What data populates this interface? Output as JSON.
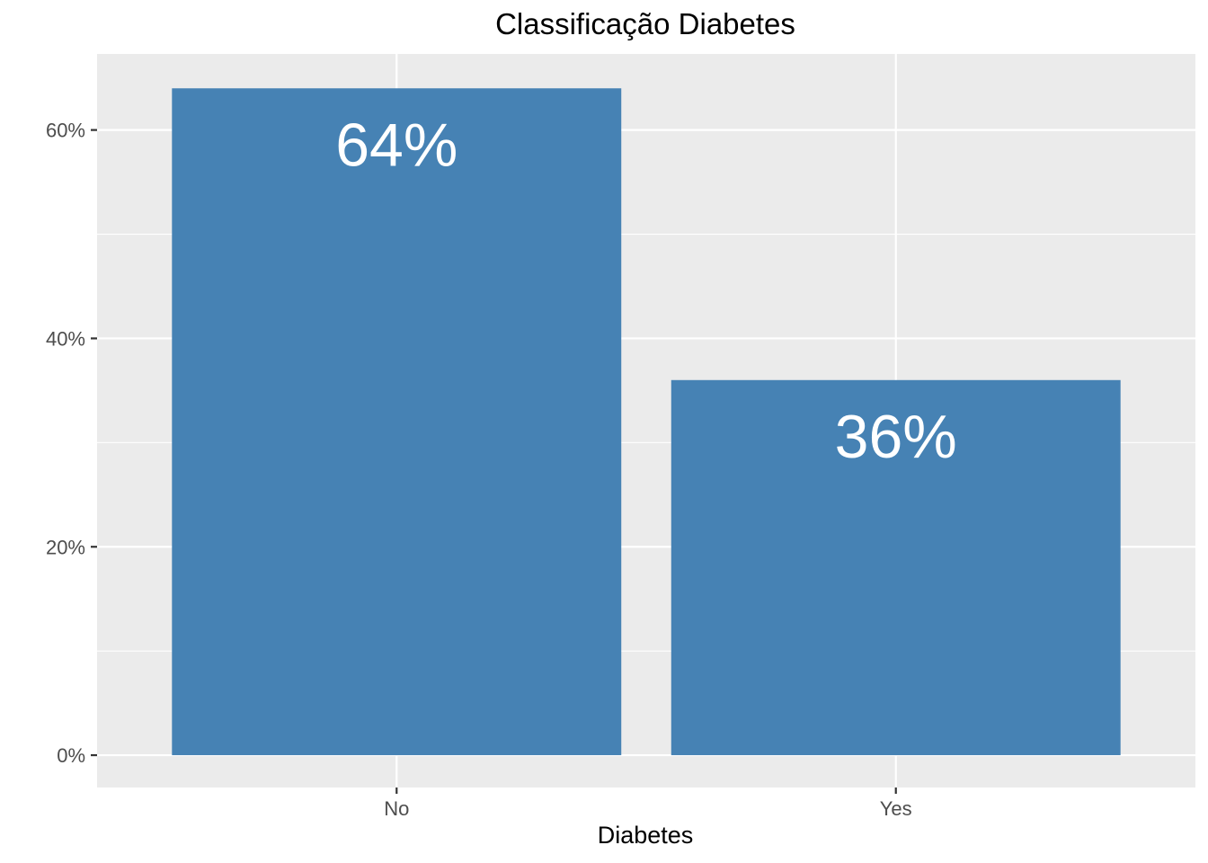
{
  "chart_data": {
    "type": "bar",
    "title": "Classificação Diabetes",
    "xlabel": "Diabetes",
    "ylabel": "",
    "categories": [
      "No",
      "Yes"
    ],
    "values": [
      64,
      36
    ],
    "value_labels": [
      "64%",
      "36%"
    ],
    "y_ticks": [
      0,
      20,
      40,
      60
    ],
    "y_tick_labels": [
      "0%",
      "20%",
      "40%",
      "60%"
    ],
    "ylim": [
      -3.1,
      67.3
    ],
    "grid": true,
    "legend": "none",
    "colors": {
      "bar": "#4682b4",
      "panel": "#ebebeb",
      "gridline": "#ffffff",
      "tick_text": "#4d4d4d",
      "tick_mark": "#333333"
    }
  }
}
